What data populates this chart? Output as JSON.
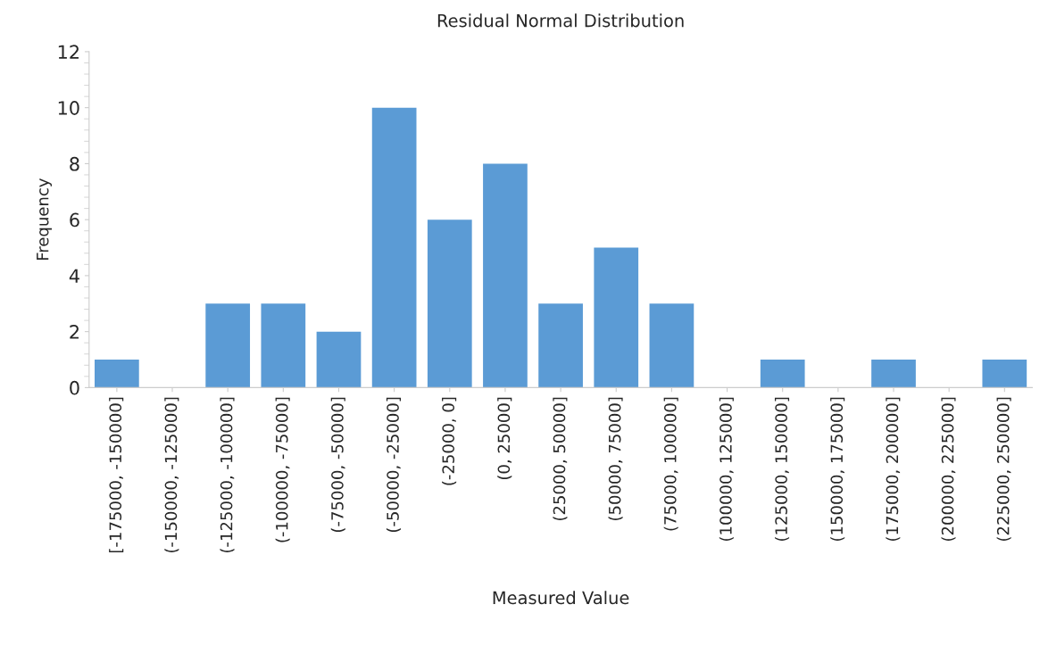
{
  "chart_data": {
    "type": "bar",
    "title": "Residual Normal Distribution",
    "xlabel": "Measured Value",
    "ylabel": "Frequency",
    "categories": [
      "[-175000, -150000]",
      "(-150000, -125000]",
      "(-125000, -100000]",
      "(-100000, -75000]",
      "(-75000, -50000]",
      "(-50000, -25000]",
      "(-25000, 0]",
      "(0, 25000]",
      "(25000, 50000]",
      "(50000, 75000]",
      "(75000, 100000]",
      "(100000, 125000]",
      "(125000, 150000]",
      "(150000, 175000]",
      "(175000, 200000]",
      "(200000, 225000]",
      "(225000, 250000]"
    ],
    "values": [
      1,
      0,
      3,
      3,
      2,
      10,
      6,
      8,
      3,
      5,
      3,
      0,
      1,
      0,
      1,
      0,
      1
    ],
    "color": "#5b9bd5",
    "ylim": [
      0,
      12
    ],
    "yticks": [
      0,
      2,
      4,
      6,
      8,
      10,
      12
    ],
    "grid": false,
    "legend": false
  }
}
